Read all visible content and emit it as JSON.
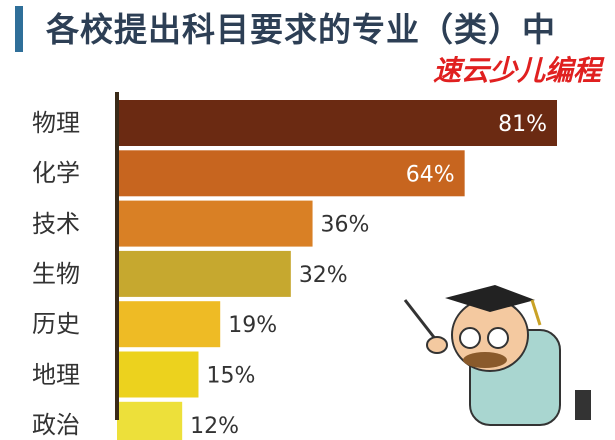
{
  "title": "各校提出科目要求的专业（类）中",
  "watermark": "速云少儿编程",
  "chart_data": {
    "type": "bar",
    "orientation": "horizontal",
    "categories": [
      "物理",
      "化学",
      "技术",
      "生物",
      "历史",
      "地理",
      "政治"
    ],
    "values": [
      81,
      64,
      36,
      32,
      19,
      15,
      12
    ],
    "labels": [
      "81%",
      "64%",
      "36%",
      "32%",
      "19%",
      "15%",
      "12%"
    ],
    "colors": [
      "#6b2a12",
      "#c7651f",
      "#d98025",
      "#c6a82f",
      "#eebb25",
      "#ecd21e",
      "#ede03a"
    ],
    "xlim": [
      0,
      81
    ],
    "grid": false
  }
}
